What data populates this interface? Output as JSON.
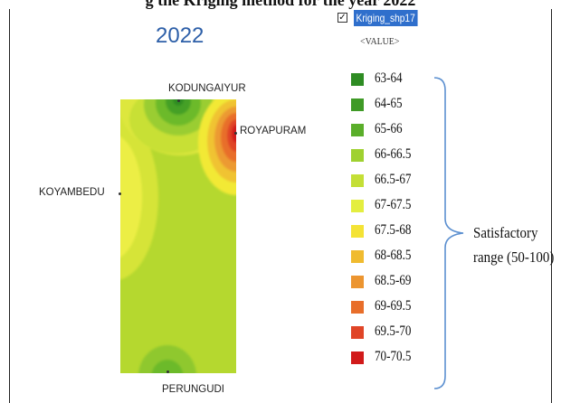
{
  "figure_caption": "g the Kriging method for the year 2022",
  "year_label": "2022",
  "layer": {
    "name": "Kriging_shp17",
    "checked": true,
    "field_label": "<VALUE>"
  },
  "places": {
    "north": "KODUNGAIYUR",
    "east": "ROYAPURAM",
    "west": "KOYAMBEDU",
    "south": "PERUNGUDI"
  },
  "legend": [
    {
      "label": "63-64",
      "color": "#2e8c23"
    },
    {
      "label": "64-65",
      "color": "#3f9a26"
    },
    {
      "label": "65-66",
      "color": "#5aae2a"
    },
    {
      "label": "66-66.5",
      "color": "#9fd130"
    },
    {
      "label": "66.5-67",
      "color": "#c4df36"
    },
    {
      "label": "67-67.5",
      "color": "#e4ee40"
    },
    {
      "label": "67.5-68",
      "color": "#f4e335"
    },
    {
      "label": "68-68.5",
      "color": "#f0bb30"
    },
    {
      "label": "68.5-69",
      "color": "#ec9530"
    },
    {
      "label": "69-69.5",
      "color": "#e86e2a"
    },
    {
      "label": "69.5-70",
      "color": "#e04527"
    },
    {
      "label": "70-70.5",
      "color": "#d11a1a"
    }
  ],
  "annotation": {
    "line1": "Satisfactory",
    "line2": "range (50-100)"
  }
}
